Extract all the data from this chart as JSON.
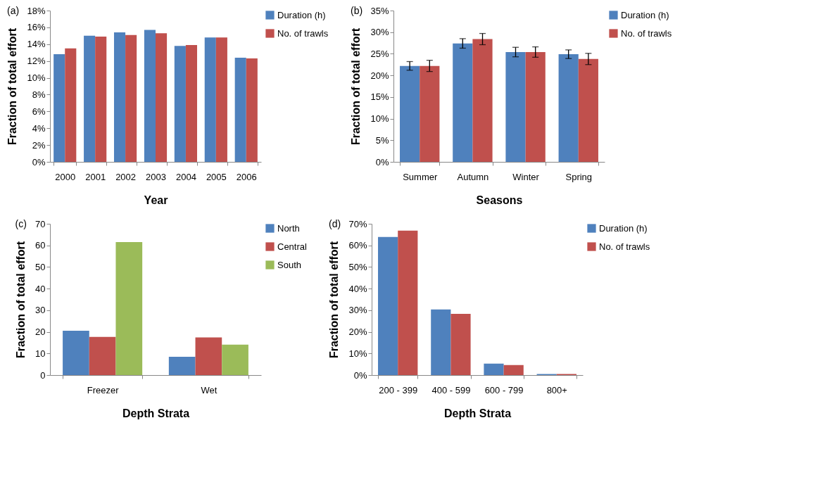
{
  "chart_data": [
    {
      "type": "bar",
      "title": "(a)",
      "xlabel": "Year",
      "ylabel": "Fraction of total effort",
      "categories": [
        "2000",
        "2001",
        "2002",
        "2003",
        "2004",
        "2005",
        "2006"
      ],
      "series": [
        {
          "name": "Duration (h)",
          "color": "#4f81bd",
          "values": [
            12.8,
            15.0,
            15.4,
            15.7,
            13.8,
            14.8,
            12.4
          ]
        },
        {
          "name": "No. of trawls",
          "color": "#c0504d",
          "values": [
            13.5,
            14.9,
            15.1,
            15.3,
            13.9,
            14.8,
            12.3
          ]
        }
      ],
      "ylim": [
        0,
        18
      ],
      "yticks": [
        {
          "value": 0,
          "label": "0%"
        },
        {
          "value": 2,
          "label": "2%"
        },
        {
          "value": 4,
          "label": "4%"
        },
        {
          "value": 6,
          "label": "6%"
        },
        {
          "value": 8,
          "label": "8%"
        },
        {
          "value": 10,
          "label": "10%"
        },
        {
          "value": 12,
          "label": "12%"
        },
        {
          "value": 14,
          "label": "14%"
        },
        {
          "value": 16,
          "label": "16%"
        },
        {
          "value": 18,
          "label": "18%"
        }
      ],
      "legend": "top right",
      "grid": false
    },
    {
      "type": "bar",
      "title": "(b)",
      "xlabel": "Seasons",
      "ylabel": "Fraction of total effort",
      "categories": [
        "Summer",
        "Autumn",
        "Winter",
        "Spring"
      ],
      "series": [
        {
          "name": "Duration (h)",
          "color": "#4f81bd",
          "values": [
            22.2,
            27.4,
            25.4,
            24.9
          ],
          "errors": [
            1.0,
            1.1,
            1.1,
            1.0
          ]
        },
        {
          "name": "No. of trawls",
          "color": "#c0504d",
          "values": [
            22.2,
            28.4,
            25.4,
            23.8
          ],
          "errors": [
            1.3,
            1.3,
            1.2,
            1.3
          ]
        }
      ],
      "ylim": [
        0,
        35
      ],
      "yticks": [
        {
          "value": 0,
          "label": "0%"
        },
        {
          "value": 5,
          "label": "5%"
        },
        {
          "value": 10,
          "label": "10%"
        },
        {
          "value": 15,
          "label": "15%"
        },
        {
          "value": 20,
          "label": "20%"
        },
        {
          "value": 25,
          "label": "25%"
        },
        {
          "value": 30,
          "label": "30%"
        },
        {
          "value": 35,
          "label": "35%"
        }
      ],
      "legend": "top right",
      "grid": false
    },
    {
      "type": "bar",
      "title": "(c)",
      "xlabel": "Depth Strata",
      "ylabel": "Fraction of total effort",
      "categories": [
        "Freezer",
        "Wet"
      ],
      "series": [
        {
          "name": "North",
          "color": "#4f81bd",
          "values": [
            20.5,
            8.5
          ]
        },
        {
          "name": "Central",
          "color": "#c0504d",
          "values": [
            17.7,
            17.4
          ]
        },
        {
          "name": "South",
          "color": "#9bbb59",
          "values": [
            61.5,
            14.1
          ]
        }
      ],
      "ylim": [
        0,
        70
      ],
      "yticks": [
        0,
        10,
        20,
        30,
        40,
        50,
        60,
        70
      ],
      "legend": "top right",
      "grid": false
    },
    {
      "type": "bar",
      "title": "(d)",
      "xlabel": "Depth Strata",
      "ylabel": "Fraction of total effort",
      "categories": [
        "200 - 399",
        "400 - 599",
        "600 - 799",
        "800+"
      ],
      "series": [
        {
          "name": "Duration (h)",
          "color": "#4f81bd",
          "values": [
            63.9,
            30.4,
            5.3,
            0.5
          ]
        },
        {
          "name": "No. of trawls",
          "color": "#c0504d",
          "values": [
            66.8,
            28.3,
            4.6,
            0.5
          ]
        }
      ],
      "ylim": [
        0,
        70
      ],
      "yticks": [
        {
          "value": 0,
          "label": "0%"
        },
        {
          "value": 10,
          "label": "10%"
        },
        {
          "value": 20,
          "label": "20%"
        },
        {
          "value": 30,
          "label": "30%"
        },
        {
          "value": 40,
          "label": "40%"
        },
        {
          "value": 50,
          "label": "50%"
        },
        {
          "value": 60,
          "label": "60%"
        },
        {
          "value": 70,
          "label": "70%"
        }
      ],
      "legend": "top right",
      "grid": false
    }
  ]
}
